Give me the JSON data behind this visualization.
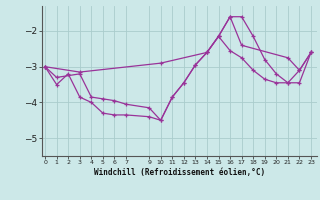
{
  "title": "",
  "xlabel": "Windchill (Refroidissement éolien,°C)",
  "bg_color": "#cce8e8",
  "line_color": "#993399",
  "grid_color": "#aacccc",
  "x_ticks": [
    0,
    1,
    2,
    3,
    4,
    5,
    6,
    7,
    9,
    10,
    11,
    12,
    13,
    14,
    15,
    16,
    17,
    18,
    19,
    20,
    21,
    22,
    23
  ],
  "yticks": [
    -5,
    -4,
    -3,
    -2
  ],
  "ylim": [
    -5.5,
    -1.3
  ],
  "xlim": [
    -0.3,
    23.5
  ],
  "series1_x": [
    0,
    1,
    2,
    3,
    4,
    5,
    6,
    7,
    9,
    10,
    11,
    12,
    13,
    14,
    15,
    16,
    17,
    18,
    19,
    20,
    21,
    22,
    23
  ],
  "series1_y": [
    -3.0,
    -3.5,
    -3.2,
    -3.85,
    -4.0,
    -4.3,
    -4.35,
    -4.35,
    -4.4,
    -4.5,
    -3.85,
    -3.45,
    -2.95,
    -2.6,
    -2.15,
    -1.6,
    -1.6,
    -2.15,
    -2.8,
    -3.2,
    -3.45,
    -3.45,
    -2.6
  ],
  "series2_x": [
    0,
    1,
    3,
    4,
    5,
    6,
    7,
    9,
    10,
    11,
    12,
    13,
    14,
    15,
    16,
    17,
    18,
    19,
    20,
    21,
    22,
    23
  ],
  "series2_y": [
    -3.0,
    -3.3,
    -3.2,
    -3.85,
    -3.9,
    -3.95,
    -4.05,
    -4.15,
    -4.5,
    -3.85,
    -3.45,
    -2.95,
    -2.6,
    -2.15,
    -2.55,
    -2.75,
    -3.1,
    -3.35,
    -3.45,
    -3.45,
    -3.1,
    -2.6
  ],
  "series3_x": [
    0,
    3,
    10,
    14,
    15,
    16,
    17,
    21,
    22,
    23
  ],
  "series3_y": [
    -3.0,
    -3.15,
    -2.9,
    -2.6,
    -2.15,
    -1.6,
    -2.4,
    -2.75,
    -3.1,
    -2.6
  ]
}
